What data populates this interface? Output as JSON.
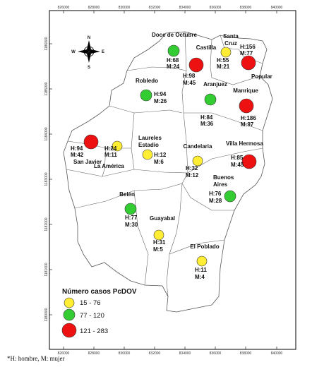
{
  "x_ticks": [
    "826000",
    "828000",
    "830000",
    "832000",
    "834000",
    "836000",
    "838000",
    "840000"
  ],
  "y_ticks": [
    "1186000",
    "1185000",
    "1184000",
    "1183000",
    "1182000",
    "1181000",
    "1180000"
  ],
  "compass": {
    "n": "N",
    "s": "S",
    "e": "E",
    "w": "W"
  },
  "legend": {
    "title": "Número casos PcDOV",
    "items": [
      {
        "label": "15 - 76",
        "color": "#ffee33"
      },
      {
        "label": "77 - 120",
        "color": "#33cc33"
      },
      {
        "label": "121 - 283",
        "color": "#ee1111"
      }
    ]
  },
  "comunas": [
    {
      "name": "Doce de Octubre",
      "h": "H:68",
      "m": "M:24",
      "cls": 1
    },
    {
      "name": "Castilla",
      "h": "H:98",
      "m": "M:45",
      "cls": 2
    },
    {
      "name": "Santa Cruz",
      "h": "H:55",
      "m": "M:21",
      "cls": 0
    },
    {
      "name": "Popular",
      "h": "H:156",
      "m": "M:77",
      "cls": 2
    },
    {
      "name": "Robledo",
      "h": "H:94",
      "m": "M:26",
      "cls": 1
    },
    {
      "name": "Aranjuez",
      "h": "H:84",
      "m": "M:36",
      "cls": 1
    },
    {
      "name": "Manrique",
      "h": "H:186",
      "m": "M:97",
      "cls": 2
    },
    {
      "name": "San Javier",
      "h": "H:94",
      "m": "M:42",
      "cls": 2
    },
    {
      "name": "La América",
      "h": "H:24",
      "m": "M:11",
      "cls": 0
    },
    {
      "name": "Laureles Estadio",
      "h": "H:12",
      "m": "M:6",
      "cls": 0
    },
    {
      "name": "Candelaria",
      "h": "H:32",
      "m": "M:12",
      "cls": 0
    },
    {
      "name": "Villa Hermosa",
      "h": "H:85",
      "m": "M:45",
      "cls": 2
    },
    {
      "name": "Buenos Aires",
      "h": "H:76",
      "m": "M:28",
      "cls": 1
    },
    {
      "name": "Belén",
      "h": "H:77",
      "m": "M:30",
      "cls": 1
    },
    {
      "name": "Guayabal",
      "h": "H:31",
      "m": "M:5",
      "cls": 0
    },
    {
      "name": "El Poblado",
      "h": "H:11",
      "m": "M:4",
      "cls": 0
    }
  ],
  "footnote": "*H: hombre, M: mujer"
}
